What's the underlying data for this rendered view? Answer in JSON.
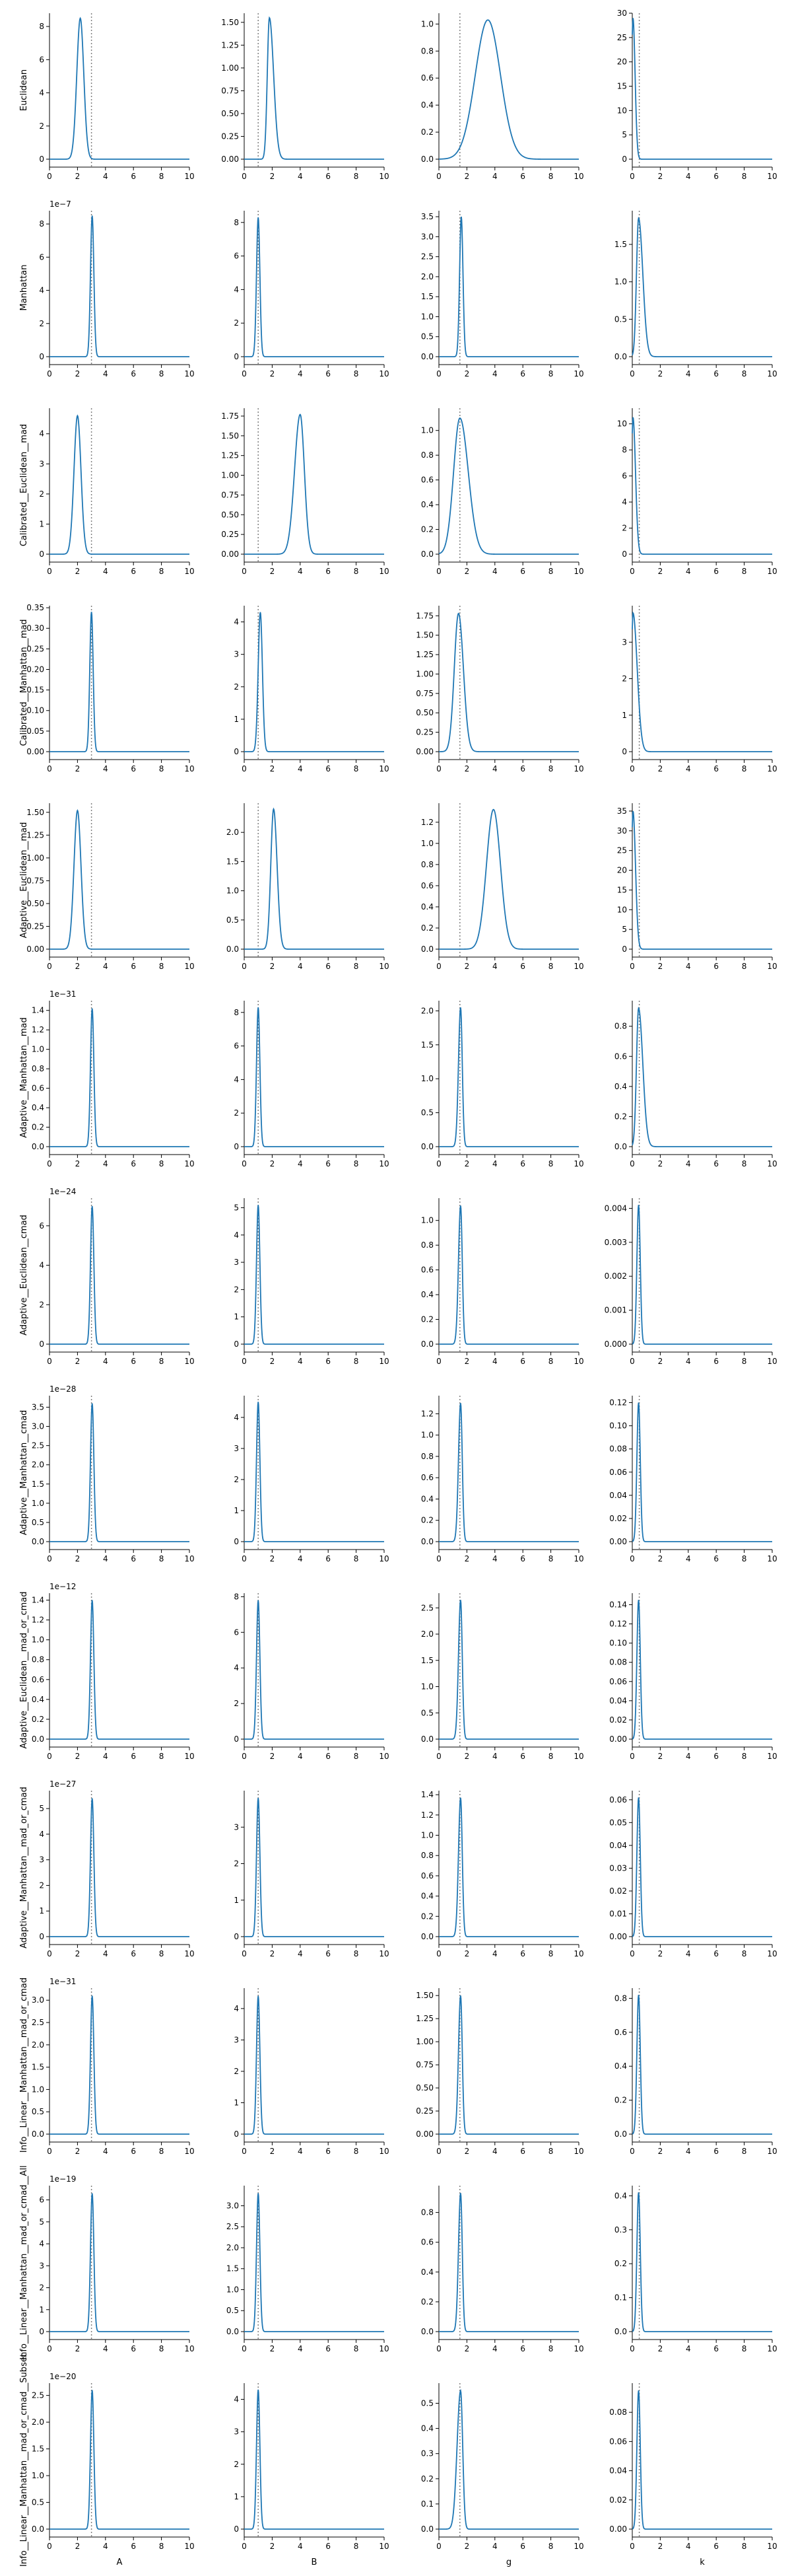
{
  "colors": {
    "line": "#1f77b4",
    "ref": "#7f7f7f",
    "axis": "#000000"
  },
  "columns": [
    "A",
    "B",
    "g",
    "k"
  ],
  "rows": [
    {
      "name": "Euclidean",
      "offset": ""
    },
    {
      "name": "Manhattan",
      "offset": "1e−7"
    },
    {
      "name": "Calibrated__Euclidean__mad",
      "offset": ""
    },
    {
      "name": "Calibrated__Manhattan__mad",
      "offset": ""
    },
    {
      "name": "Adaptive__Euclidean__mad",
      "offset": ""
    },
    {
      "name": "Adaptive__Manhattan__mad",
      "offset": "1e−31"
    },
    {
      "name": "Adaptive__Euclidean__cmad",
      "offset": "1e−24"
    },
    {
      "name": "Adaptive__Manhattan__cmad",
      "offset": "1e−28"
    },
    {
      "name": "Adaptive__Euclidean__mad_or_cmad",
      "offset": "1e−12"
    },
    {
      "name": "Adaptive__Manhattan__mad_or_cmad",
      "offset": "1e−27"
    },
    {
      "name": "Info__Linear__Manhattan__mad_or_cmad",
      "offset": "1e−31"
    },
    {
      "name": "Info__Linear__Manhattan__mad_or_cmad__All",
      "offset": "1e−19"
    },
    {
      "name": "Info__Linear__Manhattan__mad_or_cmad__Subset",
      "offset": "1e−20"
    }
  ],
  "chart_data": {
    "type": "grid-line",
    "x_range": [
      0,
      10
    ],
    "x_ticks": [
      0,
      2,
      4,
      6,
      8,
      10
    ],
    "true_values": {
      "A": 3,
      "B": 1,
      "g": 1.5,
      "k": 0.5
    },
    "panels": [
      [
        {
          "peak": 2.2,
          "left": 0.25,
          "right": 0.25,
          "height": 8.5,
          "ylim": [
            0,
            8.8
          ],
          "yticks": [
            0,
            2,
            4,
            6,
            8
          ]
        },
        {
          "peak": 1.8,
          "left": 0.15,
          "right": 0.3,
          "height": 1.55,
          "ylim": [
            0,
            1.6
          ],
          "yticks": [
            0.0,
            0.25,
            0.5,
            0.75,
            1.0,
            1.25,
            1.5
          ]
        },
        {
          "peak": 3.5,
          "left": 0.9,
          "right": 0.9,
          "height": 1.03,
          "ylim": [
            0,
            1.08
          ],
          "yticks": [
            0.0,
            0.2,
            0.4,
            0.6,
            0.8,
            1.0
          ]
        },
        {
          "peak": 0.05,
          "left": 0.1,
          "right": 0.15,
          "height": 29,
          "ylim": [
            0,
            30
          ],
          "yticks": [
            0,
            5,
            10,
            15,
            20,
            25,
            30
          ]
        }
      ],
      [
        {
          "peak": 3.05,
          "left": 0.12,
          "right": 0.12,
          "height": 8.5,
          "ylim": [
            0,
            8.8
          ],
          "yticks": [
            0,
            2,
            4,
            6,
            8
          ]
        },
        {
          "peak": 1.0,
          "left": 0.12,
          "right": 0.12,
          "height": 8.3,
          "ylim": [
            0,
            8.7
          ],
          "yticks": [
            0,
            2,
            4,
            6,
            8
          ]
        },
        {
          "peak": 1.6,
          "left": 0.12,
          "right": 0.12,
          "height": 3.5,
          "ylim": [
            0,
            3.65
          ],
          "yticks": [
            0.0,
            0.5,
            1.0,
            1.5,
            2.0,
            2.5,
            3.0,
            3.5
          ]
        },
        {
          "peak": 0.45,
          "left": 0.15,
          "right": 0.3,
          "height": 1.85,
          "ylim": [
            0,
            1.95
          ],
          "yticks": [
            0.0,
            0.5,
            1.0,
            1.5
          ]
        }
      ],
      [
        {
          "peak": 2.0,
          "left": 0.25,
          "right": 0.25,
          "height": 4.6,
          "ylim": [
            0,
            4.85
          ],
          "yticks": [
            0,
            1,
            2,
            3,
            4
          ]
        },
        {
          "peak": 4.0,
          "left": 0.4,
          "right": 0.3,
          "height": 1.77,
          "ylim": [
            0,
            1.85
          ],
          "yticks": [
            0.0,
            0.25,
            0.5,
            0.75,
            1.0,
            1.25,
            1.5,
            1.75
          ]
        },
        {
          "peak": 1.5,
          "left": 0.45,
          "right": 0.6,
          "height": 1.1,
          "ylim": [
            0,
            1.18
          ],
          "yticks": [
            0.0,
            0.2,
            0.4,
            0.6,
            0.8,
            1.0
          ]
        },
        {
          "peak": 0.05,
          "left": 0.1,
          "right": 0.18,
          "height": 10.5,
          "ylim": [
            0,
            11.2
          ],
          "yticks": [
            0,
            2,
            4,
            6,
            8,
            10
          ]
        }
      ],
      [
        {
          "peak": 3.0,
          "left": 0.12,
          "right": 0.12,
          "height": 0.34,
          "ylim": [
            0,
            0.355
          ],
          "yticks": [
            0.0,
            0.05,
            0.1,
            0.15,
            0.2,
            0.25,
            0.3,
            0.35
          ]
        },
        {
          "peak": 1.15,
          "left": 0.15,
          "right": 0.15,
          "height": 4.3,
          "ylim": [
            0,
            4.5
          ],
          "yticks": [
            0,
            1,
            2,
            3,
            4
          ]
        },
        {
          "peak": 1.4,
          "left": 0.3,
          "right": 0.35,
          "height": 1.78,
          "ylim": [
            0,
            1.88
          ],
          "yticks": [
            0.0,
            0.25,
            0.5,
            0.75,
            1.0,
            1.25,
            1.5,
            1.75
          ]
        },
        {
          "peak": 0.05,
          "left": 0.1,
          "right": 0.3,
          "height": 3.8,
          "ylim": [
            0,
            4.0
          ],
          "yticks": [
            0,
            1,
            2,
            3
          ]
        }
      ],
      [
        {
          "peak": 2.0,
          "left": 0.25,
          "right": 0.25,
          "height": 1.52,
          "ylim": [
            0,
            1.6
          ],
          "yticks": [
            0.0,
            0.25,
            0.5,
            0.75,
            1.0,
            1.25,
            1.5
          ]
        },
        {
          "peak": 2.1,
          "left": 0.2,
          "right": 0.25,
          "height": 2.4,
          "ylim": [
            0,
            2.5
          ],
          "yticks": [
            0.0,
            0.5,
            1.0,
            1.5,
            2.0
          ]
        },
        {
          "peak": 3.9,
          "left": 0.5,
          "right": 0.5,
          "height": 1.32,
          "ylim": [
            0,
            1.38
          ],
          "yticks": [
            0.0,
            0.2,
            0.4,
            0.6,
            0.8,
            1.0,
            1.2
          ]
        },
        {
          "peak": 0.05,
          "left": 0.1,
          "right": 0.18,
          "height": 35,
          "ylim": [
            0,
            37
          ],
          "yticks": [
            0,
            5,
            10,
            15,
            20,
            25,
            30,
            35
          ]
        }
      ],
      [
        {
          "peak": 3.05,
          "left": 0.12,
          "right": 0.12,
          "height": 1.42,
          "ylim": [
            0,
            1.5
          ],
          "yticks": [
            0.0,
            0.2,
            0.4,
            0.6,
            0.8,
            1.0,
            1.2,
            1.4
          ]
        },
        {
          "peak": 1.0,
          "left": 0.12,
          "right": 0.12,
          "height": 8.3,
          "ylim": [
            0,
            8.7
          ],
          "yticks": [
            0,
            2,
            4,
            6,
            8
          ]
        },
        {
          "peak": 1.55,
          "left": 0.15,
          "right": 0.12,
          "height": 2.05,
          "ylim": [
            0,
            2.15
          ],
          "yticks": [
            0.0,
            0.5,
            1.0,
            1.5,
            2.0
          ]
        },
        {
          "peak": 0.45,
          "left": 0.15,
          "right": 0.3,
          "height": 0.92,
          "ylim": [
            0,
            0.97
          ],
          "yticks": [
            0.0,
            0.2,
            0.4,
            0.6,
            0.8
          ]
        }
      ],
      [
        {
          "peak": 3.05,
          "left": 0.12,
          "right": 0.12,
          "height": 7.0,
          "ylim": [
            0,
            7.4
          ],
          "yticks": [
            0,
            2,
            4,
            6
          ]
        },
        {
          "peak": 1.0,
          "left": 0.12,
          "right": 0.12,
          "height": 5.1,
          "ylim": [
            0,
            5.35
          ],
          "yticks": [
            0,
            1,
            2,
            3,
            4,
            5
          ]
        },
        {
          "peak": 1.55,
          "left": 0.15,
          "right": 0.12,
          "height": 1.12,
          "ylim": [
            0,
            1.18
          ],
          "yticks": [
            0.0,
            0.2,
            0.4,
            0.6,
            0.8,
            1.0
          ]
        },
        {
          "peak": 0.45,
          "left": 0.12,
          "right": 0.12,
          "height": 0.0041,
          "ylim": [
            0,
            0.0043
          ],
          "yticks": [
            0.0,
            0.001,
            0.002,
            0.003,
            0.004
          ]
        }
      ],
      [
        {
          "peak": 3.05,
          "left": 0.12,
          "right": 0.12,
          "height": 3.6,
          "ylim": [
            0,
            3.8
          ],
          "yticks": [
            0.0,
            0.5,
            1.0,
            1.5,
            2.0,
            2.5,
            3.0,
            3.5
          ]
        },
        {
          "peak": 1.0,
          "left": 0.12,
          "right": 0.12,
          "height": 4.5,
          "ylim": [
            0,
            4.7
          ],
          "yticks": [
            0,
            1,
            2,
            3,
            4
          ]
        },
        {
          "peak": 1.55,
          "left": 0.15,
          "right": 0.12,
          "height": 1.3,
          "ylim": [
            0,
            1.37
          ],
          "yticks": [
            0.0,
            0.2,
            0.4,
            0.6,
            0.8,
            1.0,
            1.2
          ]
        },
        {
          "peak": 0.45,
          "left": 0.12,
          "right": 0.12,
          "height": 0.12,
          "ylim": [
            0,
            0.126
          ],
          "yticks": [
            0.0,
            0.02,
            0.04,
            0.06,
            0.08,
            0.1,
            0.12
          ]
        }
      ],
      [
        {
          "peak": 3.05,
          "left": 0.12,
          "right": 0.12,
          "height": 1.4,
          "ylim": [
            0,
            1.47
          ],
          "yticks": [
            0.0,
            0.2,
            0.4,
            0.6,
            0.8,
            1.0,
            1.2,
            1.4
          ]
        },
        {
          "peak": 1.0,
          "left": 0.12,
          "right": 0.12,
          "height": 7.8,
          "ylim": [
            0,
            8.2
          ],
          "yticks": [
            0,
            2,
            4,
            6,
            8
          ]
        },
        {
          "peak": 1.55,
          "left": 0.15,
          "right": 0.12,
          "height": 2.65,
          "ylim": [
            0,
            2.78
          ],
          "yticks": [
            0.0,
            0.5,
            1.0,
            1.5,
            2.0,
            2.5
          ]
        },
        {
          "peak": 0.45,
          "left": 0.12,
          "right": 0.12,
          "height": 0.145,
          "ylim": [
            0,
            0.152
          ],
          "yticks": [
            0.0,
            0.02,
            0.04,
            0.06,
            0.08,
            0.1,
            0.12,
            0.14
          ]
        }
      ],
      [
        {
          "peak": 3.05,
          "left": 0.12,
          "right": 0.12,
          "height": 5.4,
          "ylim": [
            0,
            5.7
          ],
          "yticks": [
            0,
            1,
            2,
            3,
            4,
            5
          ]
        },
        {
          "peak": 1.0,
          "left": 0.12,
          "right": 0.12,
          "height": 3.8,
          "ylim": [
            0,
            4.0
          ],
          "yticks": [
            0,
            1,
            2,
            3
          ]
        },
        {
          "peak": 1.55,
          "left": 0.15,
          "right": 0.12,
          "height": 1.37,
          "ylim": [
            0,
            1.44
          ],
          "yticks": [
            0.0,
            0.2,
            0.4,
            0.6,
            0.8,
            1.0,
            1.2,
            1.4
          ]
        },
        {
          "peak": 0.45,
          "left": 0.12,
          "right": 0.12,
          "height": 0.061,
          "ylim": [
            0,
            0.064
          ],
          "yticks": [
            0.0,
            0.01,
            0.02,
            0.03,
            0.04,
            0.05,
            0.06
          ]
        }
      ],
      [
        {
          "peak": 3.05,
          "left": 0.12,
          "right": 0.12,
          "height": 3.1,
          "ylim": [
            0,
            3.27
          ],
          "yticks": [
            0.0,
            0.5,
            1.0,
            1.5,
            2.0,
            2.5,
            3.0
          ]
        },
        {
          "peak": 1.0,
          "left": 0.12,
          "right": 0.12,
          "height": 4.4,
          "ylim": [
            0,
            4.65
          ],
          "yticks": [
            0,
            1,
            2,
            3,
            4
          ]
        },
        {
          "peak": 1.55,
          "left": 0.15,
          "right": 0.12,
          "height": 1.5,
          "ylim": [
            0,
            1.58
          ],
          "yticks": [
            0.0,
            0.25,
            0.5,
            0.75,
            1.0,
            1.25,
            1.5
          ]
        },
        {
          "peak": 0.45,
          "left": 0.12,
          "right": 0.12,
          "height": 0.82,
          "ylim": [
            0,
            0.86
          ],
          "yticks": [
            0.0,
            0.2,
            0.4,
            0.6,
            0.8
          ]
        }
      ],
      [
        {
          "peak": 3.05,
          "left": 0.12,
          "right": 0.12,
          "height": 6.3,
          "ylim": [
            0,
            6.65
          ],
          "yticks": [
            0,
            1,
            2,
            3,
            4,
            5,
            6
          ]
        },
        {
          "peak": 1.0,
          "left": 0.12,
          "right": 0.12,
          "height": 3.3,
          "ylim": [
            0,
            3.48
          ],
          "yticks": [
            0.0,
            0.5,
            1.0,
            1.5,
            2.0,
            2.5,
            3.0
          ]
        },
        {
          "peak": 1.55,
          "left": 0.15,
          "right": 0.12,
          "height": 0.93,
          "ylim": [
            0,
            0.98
          ],
          "yticks": [
            0.0,
            0.2,
            0.4,
            0.6,
            0.8
          ]
        },
        {
          "peak": 0.45,
          "left": 0.12,
          "right": 0.12,
          "height": 0.41,
          "ylim": [
            0,
            0.43
          ],
          "yticks": [
            0.0,
            0.1,
            0.2,
            0.3,
            0.4
          ]
        }
      ],
      [
        {
          "peak": 3.05,
          "left": 0.12,
          "right": 0.12,
          "height": 2.6,
          "ylim": [
            0,
            2.73
          ],
          "yticks": [
            0.0,
            0.5,
            1.0,
            1.5,
            2.0,
            2.5
          ]
        },
        {
          "peak": 1.0,
          "left": 0.12,
          "right": 0.12,
          "height": 4.3,
          "ylim": [
            0,
            4.5
          ],
          "yticks": [
            0,
            1,
            2,
            3,
            4
          ]
        },
        {
          "peak": 1.55,
          "left": 0.25,
          "right": 0.15,
          "height": 0.55,
          "ylim": [
            0,
            0.58
          ],
          "yticks": [
            0.0,
            0.1,
            0.2,
            0.3,
            0.4,
            0.5
          ]
        },
        {
          "peak": 0.45,
          "left": 0.12,
          "right": 0.12,
          "height": 0.095,
          "ylim": [
            0,
            0.1
          ],
          "yticks": [
            0.0,
            0.02,
            0.04,
            0.06,
            0.08
          ]
        }
      ]
    ]
  }
}
